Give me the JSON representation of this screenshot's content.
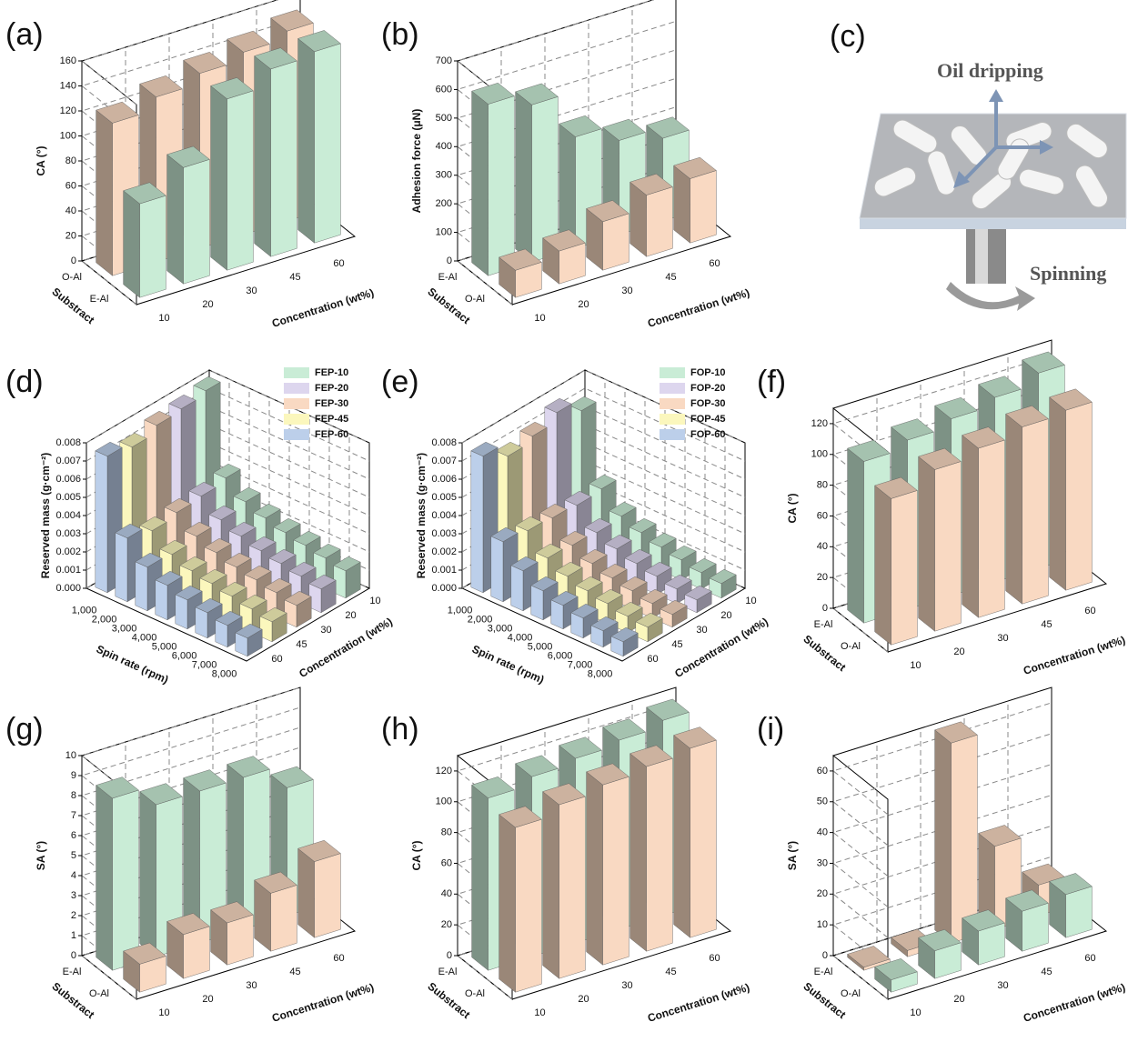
{
  "chart_data": [
    {
      "type": "bar3d",
      "panel_label": "(a)",
      "ylabel": "CA (°)",
      "xlabel": "Concentration (wt%)",
      "zlabel": "Substract",
      "categories": [
        "10",
        "20",
        "30",
        "45",
        "60"
      ],
      "series": [
        {
          "name": "O-Al",
          "color": "#f9d9c2",
          "values": [
            122,
            132,
            140,
            146,
            152
          ]
        },
        {
          "name": "E-Al",
          "color": "#c9ecd6",
          "values": [
            75,
            93,
            137,
            150,
            153
          ]
        }
      ],
      "ylim": [
        0,
        160
      ],
      "yticks": [
        0,
        20,
        40,
        60,
        80,
        100,
        120,
        140,
        160
      ],
      "grid": true
    },
    {
      "type": "bar3d",
      "panel_label": "(b)",
      "ylabel": "Adhesion force (μN)",
      "xlabel": "Concentration (wt%)",
      "zlabel": "Substract",
      "categories": [
        "10",
        "20",
        "30",
        "45",
        "60"
      ],
      "series": [
        {
          "name": "E-Al",
          "color": "#c9ecd6",
          "values": [
            600,
            550,
            390,
            330,
            290
          ]
        },
        {
          "name": "O-Al",
          "color": "#f9d9c2",
          "values": [
            95,
            115,
            170,
            215,
            225
          ]
        }
      ],
      "ylim": [
        0,
        700
      ],
      "yticks": [
        0,
        100,
        200,
        300,
        400,
        500,
        600,
        700
      ],
      "grid": true
    },
    {
      "type": "bar3d",
      "panel_label": "(d)",
      "ylabel": "Reserved mass (g·cm⁻²)",
      "xlabel": "Spin rate (rpm)",
      "zlabel": "Concentration (wt%)",
      "categories": [
        "1,000",
        "2,000",
        "3,000",
        "4,000",
        "5,000",
        "6,000",
        "7,000",
        "8,000"
      ],
      "z_categories": [
        "10",
        "20",
        "30",
        "45",
        "60"
      ],
      "legend": true,
      "series": [
        {
          "name": "FEP-10",
          "color": "#c9ecd6",
          "values": [
            0.0079,
            0.0036,
            0.0028,
            0.0024,
            0.0021,
            0.0019,
            0.0017,
            0.0015
          ]
        },
        {
          "name": "FEP-20",
          "color": "#ddd6ee",
          "values": [
            0.0077,
            0.0034,
            0.0026,
            0.0022,
            0.0019,
            0.0017,
            0.0015,
            0.0013
          ]
        },
        {
          "name": "FEP-30",
          "color": "#f9d9c2",
          "values": [
            0.0076,
            0.0033,
            0.0025,
            0.0021,
            0.0018,
            0.0016,
            0.0014,
            0.0012
          ]
        },
        {
          "name": "FEP-45",
          "color": "#fbf7bd",
          "values": [
            0.0072,
            0.0031,
            0.0023,
            0.0019,
            0.0017,
            0.0015,
            0.0013,
            0.0011
          ]
        },
        {
          "name": "FEP-60",
          "color": "#bccfea",
          "values": [
            0.0075,
            0.0035,
            0.0024,
            0.0019,
            0.0016,
            0.0014,
            0.0012,
            0.001
          ]
        }
      ],
      "ylim": [
        0,
        0.008
      ],
      "yticks": [
        {
          "value": 0,
          "label": "0.000"
        },
        0.001,
        0.002,
        0.003,
        0.004,
        0.005,
        0.006,
        0.007,
        0.008
      ],
      "grid": true
    },
    {
      "type": "bar3d",
      "panel_label": "(e)",
      "ylabel": "Reserved mass (g·cm⁻²)",
      "xlabel": "Spin rate (rpm)",
      "zlabel": "Concentration (wt%)",
      "categories": [
        "1,000",
        "2,000",
        "3,000",
        "4,000",
        "5,000",
        "6,000",
        "7,000",
        "8,000"
      ],
      "z_categories": [
        "10",
        "20",
        "30",
        "45",
        "60"
      ],
      "legend": true,
      "series": [
        {
          "name": "FOP-10",
          "color": "#c9ecd6",
          "values": [
            0.0068,
            0.003,
            0.002,
            0.0016,
            0.0013,
            0.0011,
            0.0009,
            0.0008
          ]
        },
        {
          "name": "FOP-20",
          "color": "#ddd6ee",
          "values": [
            0.0075,
            0.0029,
            0.0019,
            0.0015,
            0.0012,
            0.001,
            0.0008,
            0.0007
          ]
        },
        {
          "name": "FOP-30",
          "color": "#f9d9c2",
          "values": [
            0.007,
            0.003,
            0.002,
            0.0015,
            0.0012,
            0.001,
            0.0008,
            0.0007
          ]
        },
        {
          "name": "FOP-45",
          "color": "#fbf7bd",
          "values": [
            0.0067,
            0.0031,
            0.0021,
            0.0016,
            0.0013,
            0.0011,
            0.0009,
            0.0008
          ]
        },
        {
          "name": "FOP-60",
          "color": "#bccfea",
          "values": [
            0.0075,
            0.0033,
            0.0022,
            0.0016,
            0.0013,
            0.0011,
            0.0009,
            0.0008
          ]
        }
      ],
      "ylim": [
        0,
        0.008
      ],
      "yticks": [
        {
          "value": 0,
          "label": "0.000"
        },
        0.001,
        0.002,
        0.003,
        0.004,
        0.005,
        0.006,
        0.007,
        0.008
      ],
      "grid": true
    },
    {
      "type": "bar3d",
      "panel_label": "(f)",
      "ylabel": "CA (°)",
      "xlabel": "Concentration (wt%)",
      "zlabel": "Substract",
      "categories": [
        "10",
        "20",
        "30",
        "45",
        "60"
      ],
      "series": [
        {
          "name": "E-Al",
          "color": "#c9ecd6",
          "values": [
            105,
            110,
            115,
            120,
            127
          ]
        },
        {
          "name": "O-Al",
          "color": "#f9d9c2",
          "values": [
            95,
            105,
            110,
            115,
            117
          ]
        }
      ],
      "ylim": [
        0,
        130
      ],
      "yticks": [
        0,
        20,
        40,
        60,
        80,
        100,
        120
      ],
      "grid": true
    },
    {
      "type": "bar3d",
      "panel_label": "(g)",
      "ylabel": "SA (°)",
      "xlabel": "Concentration (wt%)",
      "zlabel": "Substract",
      "categories": [
        "10",
        "20",
        "30",
        "45",
        "60"
      ],
      "series": [
        {
          "name": "E-Al",
          "color": "#c9ecd6",
          "values": [
            8.6,
            7.6,
            7.6,
            7.6,
            6.4
          ]
        },
        {
          "name": "O-Al",
          "color": "#f9d9c2",
          "values": [
            1.4,
            2.2,
            2.1,
            2.9,
            3.8
          ]
        }
      ],
      "ylim": [
        0,
        10
      ],
      "yticks": [
        0,
        1,
        2,
        3,
        4,
        5,
        6,
        7,
        8,
        9,
        10
      ],
      "grid": true
    },
    {
      "type": "bar3d",
      "panel_label": "(h)",
      "ylabel": "CA (°)",
      "xlabel": "Concentration (wt%)",
      "zlabel": "Substract",
      "categories": [
        "10",
        "20",
        "30",
        "45",
        "60"
      ],
      "series": [
        {
          "name": "E-Al",
          "color": "#c9ecd6",
          "values": [
            112,
            117,
            120,
            123,
            127
          ]
        },
        {
          "name": "O-Al",
          "color": "#f9d9c2",
          "values": [
            107,
            113,
            117,
            120,
            123
          ]
        }
      ],
      "ylim": [
        0,
        130
      ],
      "yticks": [
        0,
        20,
        40,
        60,
        80,
        100,
        120
      ],
      "grid": true
    },
    {
      "type": "bar3d",
      "panel_label": "(i)",
      "ylabel": "SA (°)",
      "xlabel": "Concentration (wt%)",
      "zlabel": "Substract",
      "categories": [
        "10",
        "20",
        "30",
        "45",
        "60"
      ],
      "series": [
        {
          "name": "E-Al",
          "color": "#f9d9c2",
          "values": [
            1,
            2,
            65,
            27,
            10
          ]
        },
        {
          "name": "O-Al",
          "color": "#c9ecd6",
          "values": [
            4,
            9,
            11,
            13,
            14
          ]
        }
      ],
      "ylim": [
        0,
        65
      ],
      "yticks": [
        0,
        10,
        20,
        30,
        40,
        50,
        60
      ],
      "grid": true
    }
  ],
  "diagram": {
    "panel_label": "(c)",
    "top_label": "Oil dripping",
    "bottom_label": "Spinning"
  }
}
